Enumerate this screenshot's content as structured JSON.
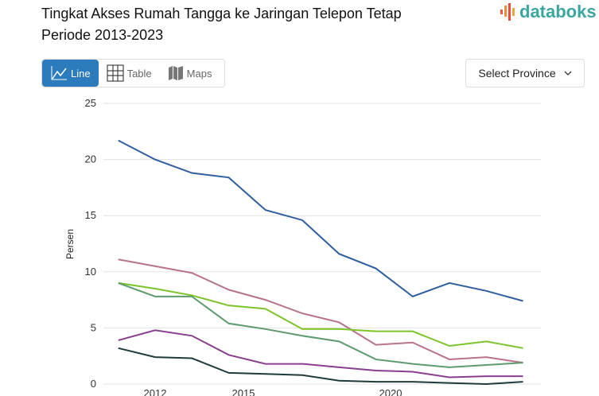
{
  "header": {
    "title_line1": "Tingkat Akses Rumah Tangga ke Jaringan Telepon Tetap",
    "title_line2": "Periode 2013-2023",
    "logo": "databoks"
  },
  "tabs": [
    {
      "label": "Line",
      "icon": "line-chart-icon"
    },
    {
      "label": "Table",
      "icon": "table-icon"
    },
    {
      "label": "Maps",
      "icon": "map-icon"
    }
  ],
  "select": {
    "label": "Select Province"
  },
  "chart_data": {
    "type": "line",
    "title": "Tingkat Akses Rumah Tangga ke Jaringan Telepon Tetap",
    "xlabel": "",
    "ylabel": "Persen",
    "ylim": [
      0,
      25
    ],
    "yticks": [
      0,
      5,
      10,
      15,
      20,
      25
    ],
    "xticks": [
      2012,
      2015,
      2020
    ],
    "xlim": [
      2009.3,
      2024.3
    ],
    "grid": true,
    "x": [
      2010.75,
      2012,
      2013.25,
      2014.5,
      2015.75,
      2017,
      2018.25,
      2019.5,
      2020.75,
      2022,
      2023.25,
      2024.5
    ],
    "series": [
      {
        "color": "#2f5f9e",
        "values": [
          21.7,
          20.0,
          18.8,
          18.4,
          15.5,
          14.6,
          11.6,
          10.3,
          7.8,
          9.0,
          8.3,
          7.4
        ]
      },
      {
        "color": "#b87389",
        "values": [
          11.1,
          10.5,
          9.9,
          8.4,
          7.5,
          6.3,
          5.5,
          3.5,
          3.7,
          2.2,
          2.4,
          1.9
        ]
      },
      {
        "color": "#7dc42a",
        "values": [
          9.0,
          8.5,
          7.9,
          7.0,
          6.7,
          4.9,
          4.9,
          4.7,
          4.7,
          3.4,
          3.8,
          3.2
        ]
      },
      {
        "color": "#5e9a6e",
        "values": [
          9.0,
          7.8,
          7.8,
          5.4,
          4.9,
          4.3,
          3.8,
          2.2,
          1.8,
          1.5,
          1.7,
          1.9
        ]
      },
      {
        "color": "#8a3f8e",
        "values": [
          3.9,
          4.8,
          4.3,
          2.6,
          1.8,
          1.8,
          1.5,
          1.2,
          1.1,
          0.6,
          0.7,
          0.7
        ]
      },
      {
        "color": "#1f3b3b",
        "values": [
          3.2,
          2.4,
          2.3,
          1.0,
          0.9,
          0.8,
          0.3,
          0.2,
          0.2,
          0.1,
          0.0,
          0.2
        ]
      }
    ]
  }
}
